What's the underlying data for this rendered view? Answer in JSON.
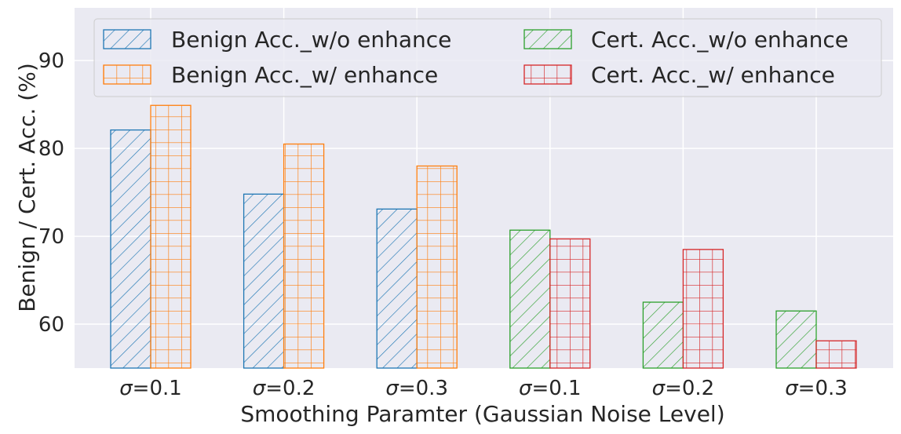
{
  "chart_data": {
    "type": "bar",
    "xlabel": "Smoothing Paramter (Gaussian Noise Level)",
    "ylabel": "Benign / Cert. Acc. (%)",
    "ylim": [
      55,
      96
    ],
    "yticks": [
      60,
      70,
      80,
      90
    ],
    "grid": true,
    "legend_position": "top",
    "groups": [
      {
        "categories": [
          "σ=0.1",
          "σ=0.2",
          "σ=0.3"
        ],
        "series": [
          {
            "name": "Benign Acc._w/o enhance",
            "values": [
              82.1,
              74.8,
              73.1
            ],
            "color": "#1f77b4",
            "hatch": "diagonal"
          },
          {
            "name": "Benign Acc._w/ enhance",
            "values": [
              84.9,
              80.5,
              78.0
            ],
            "color": "#ff7f0e",
            "hatch": "grid"
          }
        ]
      },
      {
        "categories": [
          "σ=0.1",
          "σ=0.2",
          "σ=0.3"
        ],
        "series": [
          {
            "name": "Cert. Acc._w/o enhance",
            "values": [
              70.7,
              62.5,
              61.5
            ],
            "color": "#2ca02c",
            "hatch": "diagonal"
          },
          {
            "name": "Cert. Acc._w/ enhance",
            "values": [
              69.7,
              68.5,
              58.1
            ],
            "color": "#d62728",
            "hatch": "grid"
          }
        ]
      }
    ],
    "legend": [
      "Benign Acc._w/o enhance",
      "Cert. Acc._w/o enhance",
      "Benign Acc._w/ enhance",
      "Cert. Acc._w/ enhance"
    ]
  }
}
